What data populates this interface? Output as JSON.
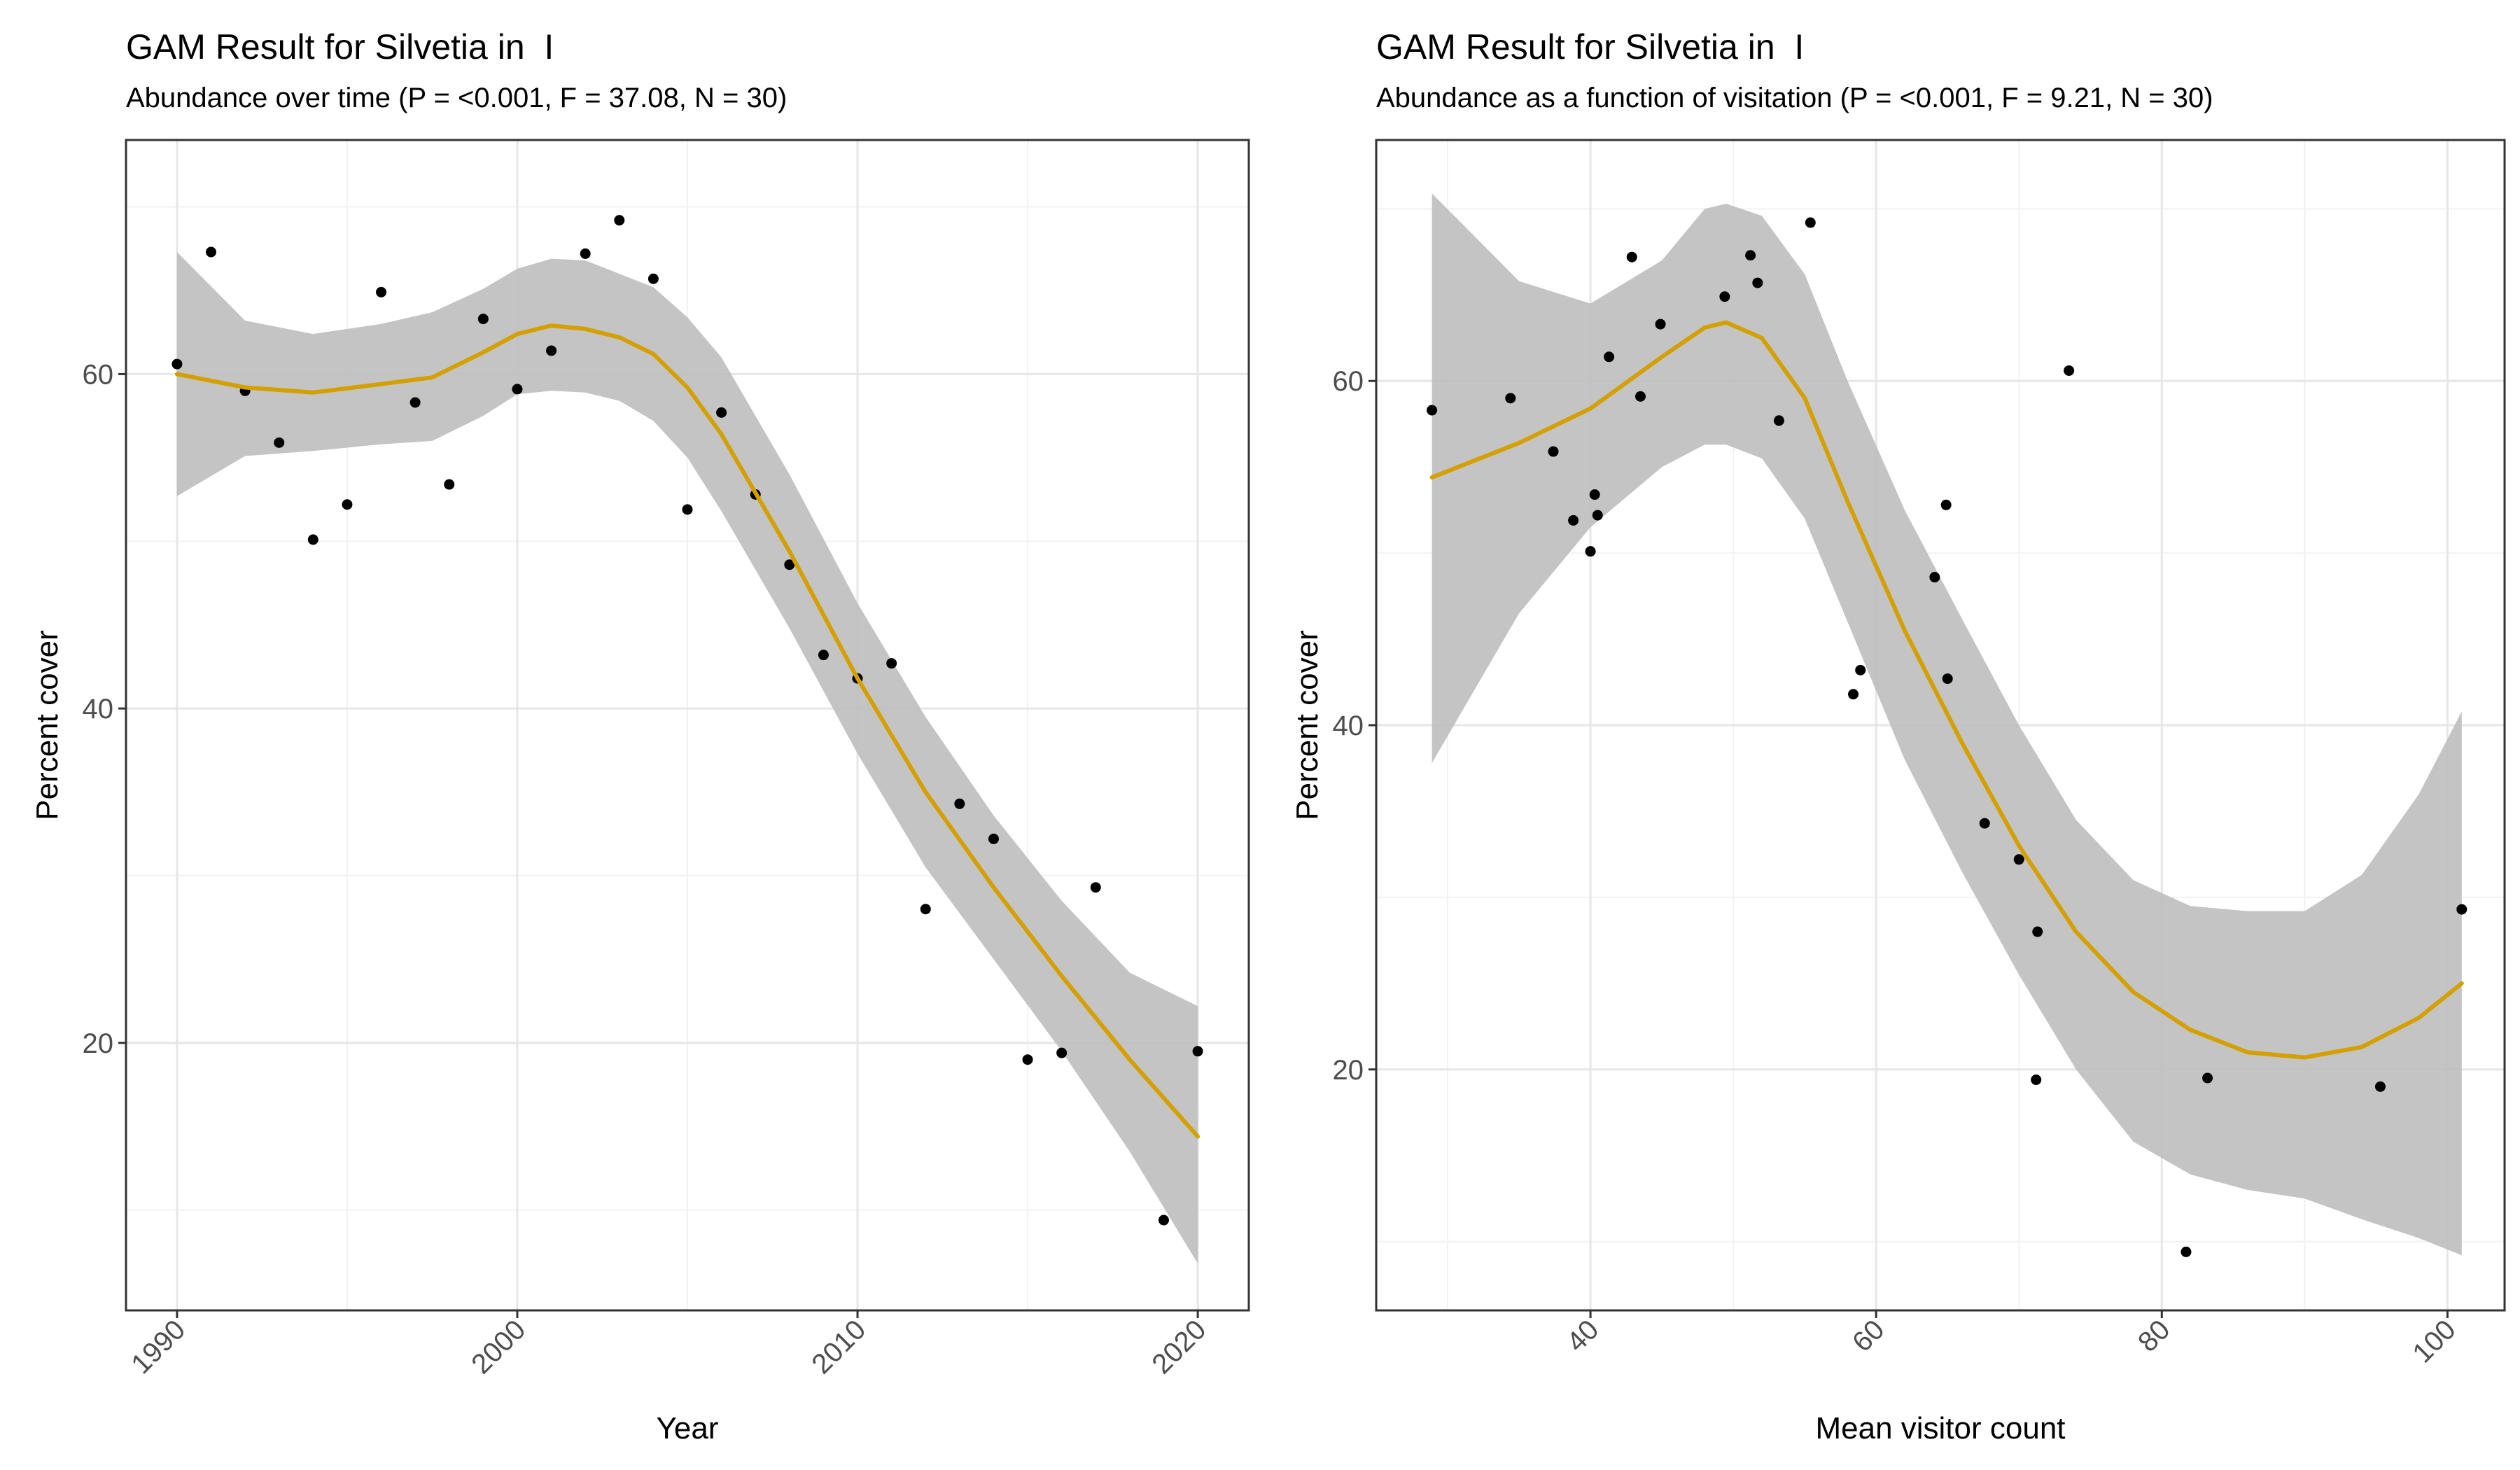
{
  "colors": {
    "smooth_line": "#D4A000",
    "ribbon": "#BEBEBE",
    "points": "#000000",
    "grid_major": "#E6E6E6",
    "grid_minor": "#F2F2F2",
    "axis_text": "#4D4D4D"
  },
  "chart_data": [
    {
      "type": "scatter",
      "title": "GAM Result for Silvetia in  I",
      "subtitle": "Abundance over time (P = <0.001, F = 37.08, N = 30)",
      "xlabel": "Year",
      "ylabel": "Percent cover",
      "xlim": [
        1988.5,
        2021.5
      ],
      "ylim": [
        4,
        74
      ],
      "xticks": [
        1990,
        2000,
        2010,
        2020
      ],
      "xtick_labels": [
        "1990",
        "2000",
        "2010",
        "2020"
      ],
      "yticks": [
        20,
        40,
        60
      ],
      "ytick_labels": [
        "20",
        "40",
        "60"
      ],
      "grid": true,
      "points": {
        "x": [
          1990,
          1991,
          1992,
          1993,
          1994,
          1995,
          1996,
          1997,
          1998,
          1999,
          2000,
          2001,
          2002,
          2003,
          2004,
          2005,
          2006,
          2007,
          2008,
          2009,
          2010,
          2011,
          2012,
          2013,
          2014,
          2015,
          2016,
          2017,
          2019,
          2020
        ],
        "y": [
          60.6,
          67.3,
          59.0,
          55.9,
          50.1,
          52.2,
          64.9,
          58.3,
          53.4,
          63.3,
          59.1,
          61.4,
          67.2,
          69.2,
          65.7,
          51.9,
          57.7,
          52.8,
          48.6,
          43.2,
          41.8,
          42.7,
          28.0,
          34.3,
          32.2,
          19.0,
          19.4,
          29.3,
          9.4,
          19.5
        ]
      },
      "smooth": {
        "x": [
          1990,
          1992,
          1994,
          1996,
          1997.5,
          1999,
          2000,
          2001,
          2002,
          2003,
          2004,
          2005,
          2006,
          2008,
          2010,
          2012,
          2014,
          2016,
          2018,
          2020
        ],
        "y": [
          60.0,
          59.2,
          58.9,
          59.4,
          59.8,
          61.3,
          62.4,
          62.9,
          62.7,
          62.2,
          61.2,
          59.2,
          56.4,
          49.4,
          41.8,
          35.0,
          29.3,
          24.0,
          19.0,
          14.4
        ],
        "lower": [
          52.7,
          55.1,
          55.4,
          55.8,
          56.0,
          57.5,
          58.8,
          59.0,
          58.9,
          58.4,
          57.2,
          55.0,
          51.8,
          44.8,
          37.3,
          30.5,
          25.0,
          19.5,
          13.5,
          6.8
        ],
        "upper": [
          67.3,
          63.2,
          62.4,
          63.0,
          63.7,
          65.1,
          66.3,
          66.9,
          66.8,
          66.0,
          65.2,
          63.4,
          61.0,
          54.0,
          46.3,
          39.5,
          33.6,
          28.5,
          24.2,
          22.2
        ]
      }
    },
    {
      "type": "scatter",
      "title": "GAM Result for Silvetia in  I",
      "subtitle": "Abundance as a function of visitation (P = <0.001, F = 9.21, N = 30)",
      "xlabel": "Mean visitor count",
      "ylabel": "Percent cover",
      "xlim": [
        25,
        104
      ],
      "ylim": [
        6,
        74
      ],
      "xticks": [
        40,
        60,
        80,
        100
      ],
      "xtick_labels": [
        "40",
        "60",
        "80",
        "100"
      ],
      "yticks": [
        20,
        40,
        60
      ],
      "ytick_labels": [
        "20",
        "40",
        "60"
      ],
      "grid": true,
      "points": {
        "x": [
          28.9,
          34.4,
          37.4,
          38.8,
          40.0,
          40.3,
          40.5,
          41.3,
          42.9,
          43.5,
          44.9,
          49.4,
          51.2,
          51.7,
          53.2,
          55.4,
          58.4,
          58.9,
          64.1,
          64.9,
          65.0,
          67.6,
          70.0,
          71.3,
          71.2,
          73.5,
          81.7,
          83.2,
          95.3,
          101.0
        ],
        "y": [
          58.3,
          59.0,
          55.9,
          51.9,
          50.1,
          53.4,
          52.2,
          61.4,
          67.2,
          59.1,
          63.3,
          64.9,
          67.3,
          65.7,
          57.7,
          69.2,
          41.8,
          43.2,
          48.6,
          52.8,
          42.7,
          34.3,
          32.2,
          28.0,
          19.4,
          60.6,
          9.4,
          19.5,
          19.0,
          29.3
        ]
      },
      "smooth": {
        "x": [
          28.9,
          35,
          40,
          45,
          48,
          49.5,
          52,
          55,
          58,
          62,
          66,
          70,
          74,
          78,
          82,
          86,
          90,
          94,
          98,
          101
        ],
        "y": [
          54.4,
          56.4,
          58.4,
          61.4,
          63.1,
          63.4,
          62.5,
          59.0,
          53.0,
          45.5,
          39.0,
          33.0,
          28.0,
          24.5,
          22.3,
          21.0,
          20.7,
          21.3,
          23.0,
          25.0
        ],
        "lower": [
          37.8,
          46.5,
          51.5,
          55.0,
          56.3,
          56.3,
          55.5,
          52.0,
          46.0,
          38.0,
          31.5,
          25.5,
          20.0,
          15.8,
          13.9,
          13.0,
          12.5,
          11.3,
          10.2,
          9.2
        ],
        "upper": [
          70.9,
          65.8,
          64.5,
          67.0,
          70.0,
          70.3,
          69.6,
          66.2,
          60.0,
          52.5,
          46.2,
          40.0,
          34.5,
          31.0,
          29.5,
          29.2,
          29.2,
          31.3,
          36.0,
          40.8
        ]
      }
    }
  ]
}
